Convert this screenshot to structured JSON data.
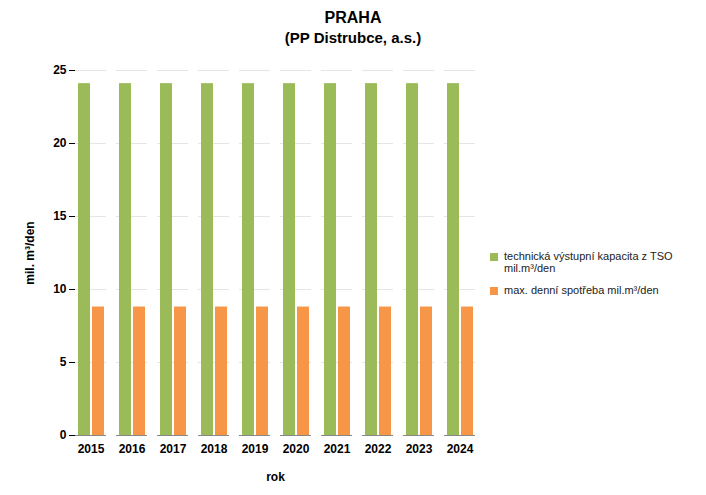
{
  "chart_data": {
    "type": "bar",
    "title": "PRAHA",
    "subtitle": "(PP Distrubce, a.s.)",
    "x_label": "rok",
    "y_label": "mil. m³/den",
    "categories": [
      "2015",
      "2016",
      "2017",
      "2018",
      "2019",
      "2020",
      "2021",
      "2022",
      "2023",
      "2024"
    ],
    "series": [
      {
        "name": "technická výstupní kapacita z TSO mil.m³/den",
        "color": "#9bbb59",
        "values": [
          24.1,
          24.1,
          24.1,
          24.1,
          24.1,
          24.1,
          24.1,
          24.1,
          24.1,
          24.1
        ]
      },
      {
        "name": "max. denní spotřeba mil.m³/den",
        "color": "#f79646",
        "values": [
          8.8,
          8.8,
          8.8,
          8.8,
          8.8,
          8.8,
          8.8,
          8.8,
          8.8,
          8.8
        ]
      }
    ],
    "ylim": [
      0,
      25
    ],
    "yticks": [
      0,
      5,
      10,
      15,
      20,
      25
    ],
    "grid": true,
    "legend": "right"
  }
}
